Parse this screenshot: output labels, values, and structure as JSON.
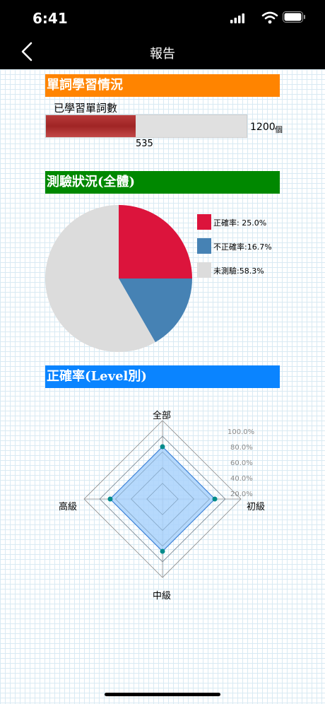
{
  "status_bar": {
    "time": "6:41"
  },
  "nav": {
    "title": "報告"
  },
  "learning": {
    "header": "單詞學習情況",
    "label": "已學習單詞數",
    "learned": 535,
    "learned_text": "535",
    "total": 1200,
    "total_text": "1200",
    "unit": "個"
  },
  "test_status": {
    "header": "測驗狀況(全體)",
    "legend": [
      {
        "label": "正確率: 25.0%"
      },
      {
        "label": "不正確率:16.7%"
      },
      {
        "label": "未測驗:58.3%"
      }
    ]
  },
  "accuracy": {
    "header": "正確率(Level別)",
    "axes": [
      "全部",
      "初級",
      "中級",
      "高級"
    ],
    "scale": [
      "100.0%",
      "80.0%",
      "60.0%",
      "40.0%",
      "20.0%"
    ]
  },
  "chart_data": [
    {
      "type": "bar",
      "categories": [
        "已學習單詞數"
      ],
      "values": [
        535
      ],
      "ylim": [
        0,
        1200
      ]
    },
    {
      "type": "pie",
      "categories": [
        "正確率",
        "不正確率",
        "未測驗"
      ],
      "values": [
        25.0,
        16.7,
        58.3
      ],
      "colors": [
        "#dc143c",
        "#4682b4",
        "#dcdcdc"
      ]
    },
    {
      "type": "radar",
      "categories": [
        "全部",
        "初級",
        "中級",
        "高級"
      ],
      "values": [
        66.7,
        66.7,
        66.7,
        66.7
      ],
      "ylim": [
        0,
        100
      ],
      "fill": "#a9d2fb",
      "line": "#3a7fd6",
      "point": "#008b8b"
    }
  ]
}
